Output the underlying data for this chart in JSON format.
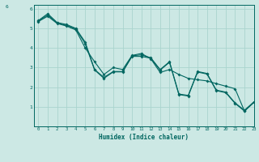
{
  "xlabel": "Humidex (Indice chaleur)",
  "ylabel": "",
  "background_color": "#cce8e4",
  "grid_color": "#aad4ce",
  "line_color": "#006660",
  "xlim": [
    -0.5,
    23
  ],
  "ylim": [
    0,
    6.2
  ],
  "xticks": [
    0,
    1,
    2,
    3,
    4,
    5,
    6,
    7,
    8,
    9,
    10,
    11,
    12,
    13,
    14,
    15,
    16,
    17,
    18,
    19,
    20,
    21,
    22,
    23
  ],
  "yticks": [
    1,
    2,
    3,
    4,
    5,
    6
  ],
  "line1_x": [
    0,
    1,
    2,
    3,
    4,
    5,
    6,
    7,
    8,
    9,
    10,
    11,
    12,
    13,
    14,
    15,
    16,
    17,
    18,
    19,
    20,
    21,
    22,
    23
  ],
  "line1_y": [
    5.4,
    5.75,
    5.3,
    5.2,
    5.0,
    4.3,
    2.9,
    2.5,
    2.8,
    2.8,
    3.6,
    3.65,
    3.5,
    2.9,
    3.3,
    1.65,
    1.58,
    2.8,
    2.7,
    1.85,
    1.75,
    1.2,
    0.82,
    1.25
  ],
  "line2_x": [
    0,
    1,
    2,
    3,
    4,
    5,
    6,
    7,
    8,
    9,
    10,
    11,
    12,
    13,
    14,
    15,
    16,
    17,
    18,
    19,
    20,
    21,
    22,
    23
  ],
  "line2_y": [
    5.38,
    5.68,
    5.28,
    5.15,
    4.97,
    4.22,
    2.88,
    2.45,
    2.78,
    2.78,
    3.57,
    3.57,
    3.48,
    2.87,
    3.27,
    1.62,
    1.55,
    2.77,
    2.67,
    1.82,
    1.72,
    1.17,
    0.78,
    1.22
  ],
  "line3_x": [
    0,
    1,
    2,
    3,
    4,
    5,
    6,
    7,
    8,
    9,
    10,
    11,
    12,
    13,
    14,
    15,
    16,
    17,
    18,
    19,
    20,
    21,
    22,
    23
  ],
  "line3_y": [
    5.35,
    5.62,
    5.25,
    5.12,
    4.92,
    4.0,
    3.3,
    2.65,
    3.0,
    2.9,
    3.62,
    3.72,
    3.45,
    2.75,
    2.9,
    2.65,
    2.45,
    2.38,
    2.32,
    2.18,
    2.05,
    1.92,
    0.78,
    1.22
  ]
}
